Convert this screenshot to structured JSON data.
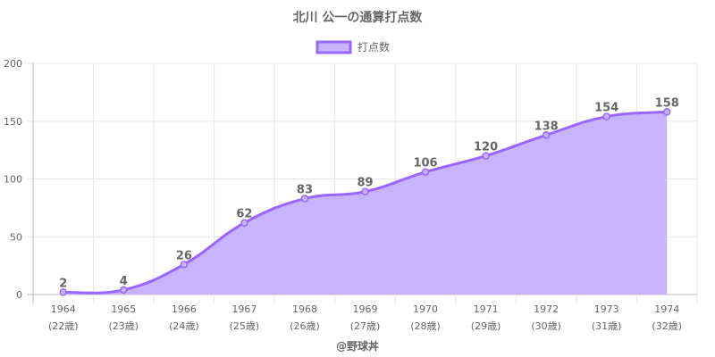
{
  "chart_data": {
    "type": "area",
    "title": "北川 公一の通算打点数",
    "legend": {
      "position": "top",
      "entries": [
        "打点数"
      ]
    },
    "x": [
      "1964",
      "1965",
      "1966",
      "1967",
      "1968",
      "1969",
      "1970",
      "1971",
      "1972",
      "1973",
      "1974"
    ],
    "x_sublabels": [
      "(22歳)",
      "(23歳)",
      "(24歳)",
      "(25歳)",
      "(26歳)",
      "(27歳)",
      "(28歳)",
      "(29歳)",
      "(30歳)",
      "(31歳)",
      "(32歳)"
    ],
    "series": [
      {
        "name": "打点数",
        "values": [
          2,
          4,
          26,
          62,
          83,
          89,
          106,
          120,
          138,
          154,
          158
        ]
      }
    ],
    "y_ticks": [
      "0",
      "50",
      "100",
      "150",
      "200"
    ],
    "ylim": [
      0,
      200
    ],
    "grid": true,
    "data_labels": true,
    "colors": {
      "line": "#9966ff",
      "fill": "#c9b3ff",
      "text": "#666666",
      "grid": "#e5e5e5"
    }
  },
  "credit": "@野球丼"
}
